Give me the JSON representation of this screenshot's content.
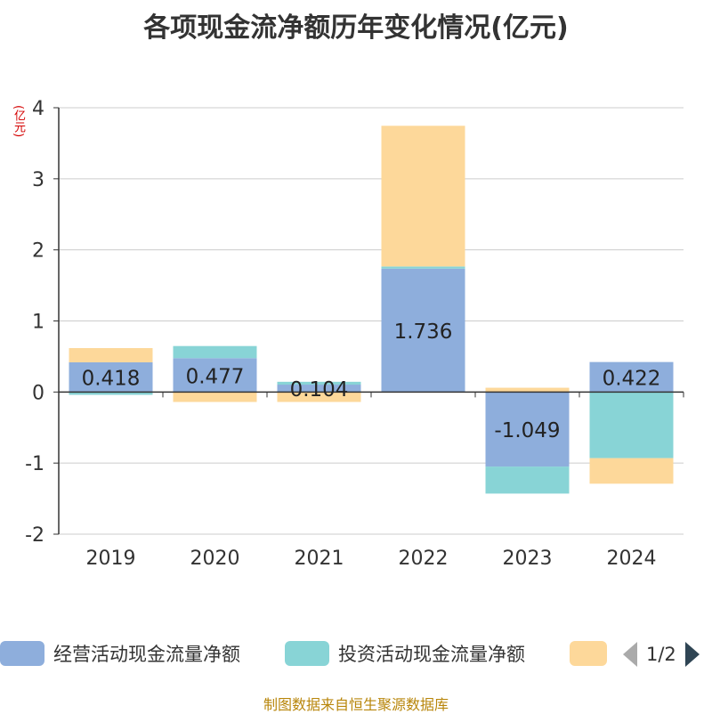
{
  "chart_data": {
    "type": "bar",
    "stacked": true,
    "title": "各项现金流净额历年变化情况(亿元)",
    "ylabel": "(亿元)",
    "categories": [
      "2019",
      "2020",
      "2021",
      "2022",
      "2023",
      "2024"
    ],
    "ylim": [
      -2,
      4
    ],
    "yticks": [
      -2,
      -1,
      0,
      1,
      2,
      3,
      4
    ],
    "series": [
      {
        "name": "经营活动现金流量净额",
        "color": "#8eaedc",
        "values": [
          0.418,
          0.477,
          0.104,
          1.736,
          -1.049,
          0.422
        ],
        "labels": [
          "0.418",
          "0.477",
          "0.104",
          "1.736",
          "-1.049",
          "0.422"
        ]
      },
      {
        "name": "投资活动现金流量净额",
        "color": "#88d4d6",
        "values": [
          -0.04,
          0.17,
          0.04,
          0.03,
          -0.38,
          -0.93
        ]
      },
      {
        "name": "",
        "color": "#fdd89a",
        "values": [
          0.2,
          -0.14,
          -0.14,
          1.98,
          0.06,
          -0.36
        ]
      }
    ],
    "grid": true
  },
  "legend": {
    "items": [
      {
        "label": "经营活动现金流量净额",
        "color": "#8eaedc"
      },
      {
        "label": "投资活动现金流量净额",
        "color": "#88d4d6"
      },
      {
        "label": "",
        "color": "#fdd89a"
      }
    ],
    "page": "1/2"
  },
  "source": "制图数据来自恒生聚源数据库"
}
